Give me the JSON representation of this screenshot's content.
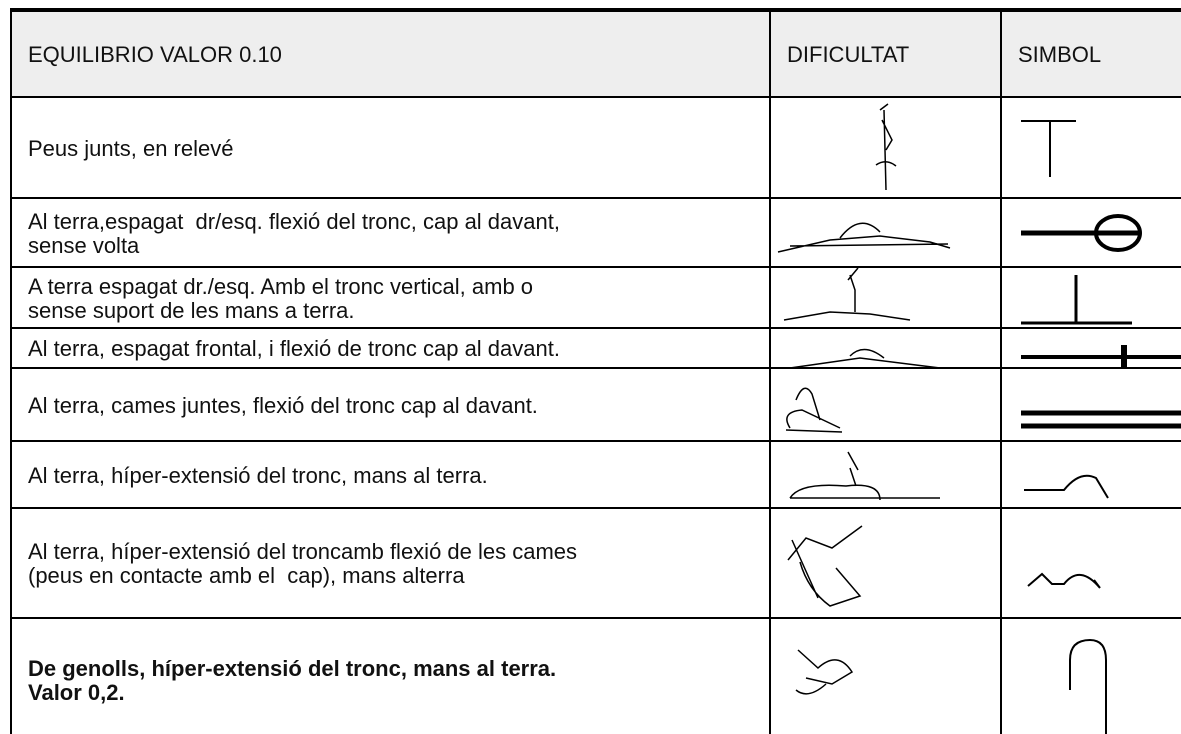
{
  "header": {
    "columns": [
      "EQUILIBRIO VALOR 0.10",
      "DIFICULTAT",
      "SIMBOL"
    ]
  },
  "table": {
    "rows": [
      "Peus junts, en relevé",
      "Al terra,espagat  dr/esq. flexió del tronc, cap al davant,\nsense volta",
      "A terra espagat dr./esq. Amb el tronc vertical, amb o\nsense suport de les mans a terra.",
      "Al terra, espagat frontal, i flexió de tronc cap al davant.",
      "Al terra, cames juntes, flexió del tronc cap al davant.",
      "Al terra, híper-extensió del tronc, mans al terra.",
      "Al terra, híper-extensió del troncamb flexió de les cames\n(peus en contacte amb el  cap), mans alterra",
      "De genolls, híper-extensió del tronc, mans al terra.\nValor 0,2."
    ]
  }
}
